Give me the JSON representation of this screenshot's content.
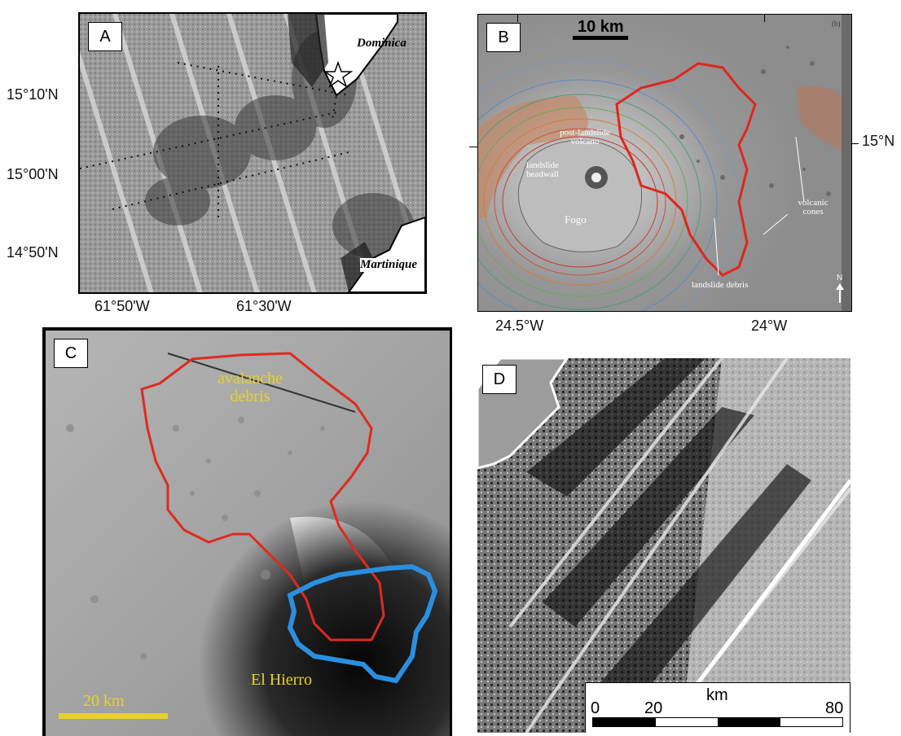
{
  "panels": {
    "a": {
      "label": "A",
      "places": {
        "dominica": "Dominica",
        "martinique": "Martinique"
      },
      "lat_ticks": [
        "15°10'N",
        "15°00'N",
        "14°50'N"
      ],
      "lon_ticks": [
        "61°50'W",
        "61°30'W"
      ]
    },
    "b": {
      "label": "B",
      "scale": "10 km",
      "corner_tag": "(b)",
      "lat_tick": "15°N",
      "lon_ticks": [
        "24.5°W",
        "24°W"
      ],
      "annotations": {
        "post_landslide": "post-landslide volcano",
        "headwall": "landslide headwall",
        "fogo": "Fogo",
        "volcanic_cones": "volcanic cones",
        "debris": "landslide debris"
      },
      "north": "N"
    },
    "c": {
      "label": "C",
      "debris": "avalanche debris",
      "island": "El Hierro",
      "scale": "20 km",
      "colors": {
        "debris_outline": "#e02a1e",
        "island_outline": "#2a8fe0",
        "text": "#e8d22a"
      }
    },
    "d": {
      "label": "D",
      "scale_unit": "km",
      "scale_ticks": [
        "0",
        "20",
        "80"
      ]
    }
  }
}
